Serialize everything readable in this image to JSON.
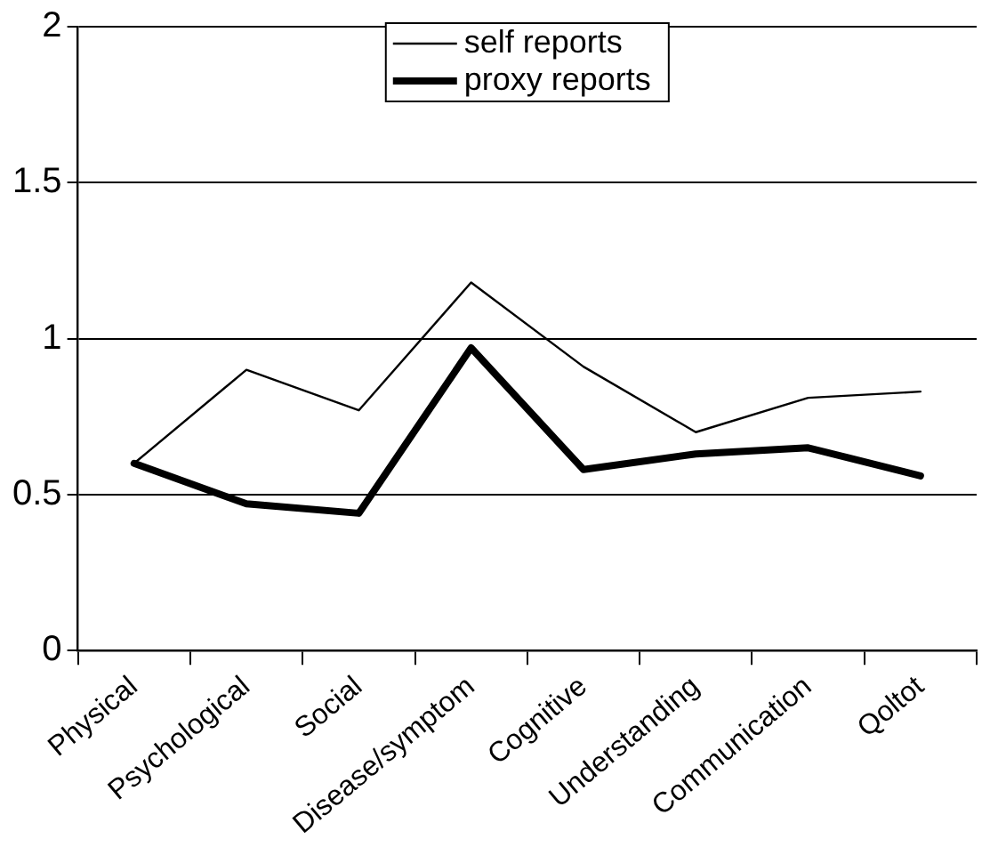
{
  "chart_data": {
    "type": "line",
    "categories": [
      "Physical",
      "Psychological",
      "Social",
      "Disease/symptom",
      "Cognitive",
      "Understanding",
      "Communication",
      "Qoltot"
    ],
    "series": [
      {
        "name": "self reports",
        "color": "#000000",
        "values": [
          0.6,
          0.9,
          0.77,
          1.18,
          0.91,
          0.7,
          0.81,
          0.83
        ]
      },
      {
        "name": "proxy reports",
        "color": "#000000",
        "values": [
          0.6,
          0.47,
          0.44,
          0.97,
          0.58,
          0.63,
          0.65,
          0.56
        ]
      }
    ],
    "ylim": [
      0,
      2
    ],
    "yticks": [
      0,
      0.5,
      1,
      1.5,
      2
    ],
    "grid": "y",
    "legend": "top",
    "marker": "none",
    "line_style": "solid"
  }
}
